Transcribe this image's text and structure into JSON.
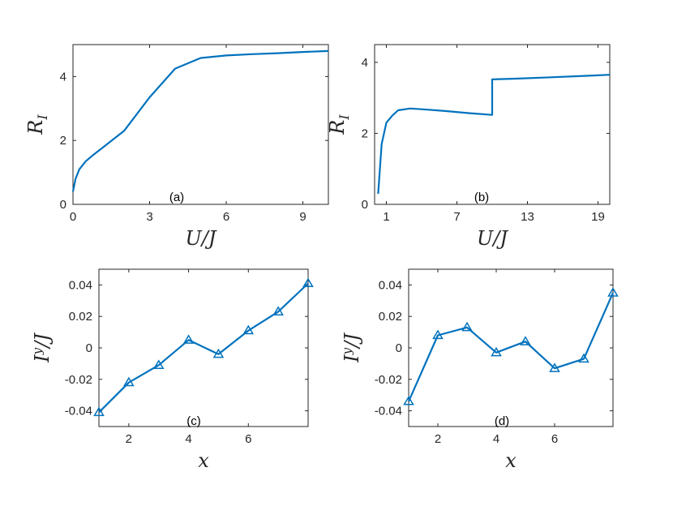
{
  "colors": {
    "line": "#0072bd",
    "axis": "#262626"
  },
  "chart_data": [
    {
      "type": "line",
      "panel_label": "(a)",
      "xlabel": "U/J",
      "ylabel": "R_I",
      "xlim": [
        0,
        10
      ],
      "ylim": [
        0,
        5
      ],
      "xticks": [
        0,
        3,
        6,
        9
      ],
      "yticks": [
        0,
        2,
        4
      ],
      "markers": false,
      "series": [
        {
          "x": [
            0,
            0.1,
            0.25,
            0.5,
            0.8,
            1.2,
            1.6,
            2.0,
            3.0,
            4.0,
            5.0,
            6.0,
            7.0,
            8.0,
            9.0,
            10.0
          ],
          "values": [
            0.4,
            0.8,
            1.1,
            1.35,
            1.55,
            1.8,
            2.05,
            2.3,
            3.35,
            4.25,
            4.58,
            4.66,
            4.7,
            4.73,
            4.77,
            4.8
          ]
        }
      ]
    },
    {
      "type": "line",
      "panel_label": "(b)",
      "xlabel": "U/J",
      "ylabel": "R_I",
      "xlim": [
        0,
        20
      ],
      "ylim": [
        0,
        4.5
      ],
      "xticks": [
        1,
        7,
        13,
        19
      ],
      "yticks": [
        0,
        2,
        4
      ],
      "markers": false,
      "series": [
        {
          "x": [
            0.3,
            0.6,
            1.0,
            1.5,
            2.0,
            3.0,
            4.0,
            6.0,
            8.0,
            10.0,
            10.0,
            12.0,
            15.0,
            18.0,
            20.0
          ],
          "values": [
            0.3,
            1.7,
            2.3,
            2.5,
            2.65,
            2.7,
            2.68,
            2.63,
            2.57,
            2.52,
            3.52,
            3.54,
            3.58,
            3.62,
            3.65
          ]
        }
      ]
    },
    {
      "type": "line",
      "panel_label": "(c)",
      "xlabel": "x",
      "ylabel": "I^y/J",
      "xlim": [
        1,
        8
      ],
      "ylim": [
        -0.05,
        0.05
      ],
      "xticks": [
        2,
        4,
        6
      ],
      "yticks": [
        -0.04,
        -0.02,
        0,
        0.02,
        0.04
      ],
      "ytick_labels": [
        "-0.04",
        "-0.02",
        "0",
        "0.02",
        "0.04"
      ],
      "markers": true,
      "series": [
        {
          "x": [
            1,
            2,
            3,
            4,
            5,
            6,
            7,
            8
          ],
          "values": [
            -0.041,
            -0.022,
            -0.011,
            0.005,
            -0.004,
            0.011,
            0.023,
            0.041
          ]
        }
      ]
    },
    {
      "type": "line",
      "panel_label": "(d)",
      "xlabel": "x",
      "ylabel": "I^y/J",
      "xlim": [
        1,
        8
      ],
      "ylim": [
        -0.05,
        0.05
      ],
      "xticks": [
        2,
        4,
        6
      ],
      "yticks": [
        -0.04,
        -0.02,
        0,
        0.02,
        0.04
      ],
      "ytick_labels": [
        "-0.04",
        "-0.02",
        "0",
        "0.02",
        "0.04"
      ],
      "markers": true,
      "series": [
        {
          "x": [
            1,
            2,
            3,
            4,
            5,
            6,
            7,
            8
          ],
          "values": [
            -0.034,
            0.008,
            0.013,
            -0.003,
            0.004,
            -0.013,
            -0.007,
            0.035
          ]
        }
      ]
    }
  ]
}
